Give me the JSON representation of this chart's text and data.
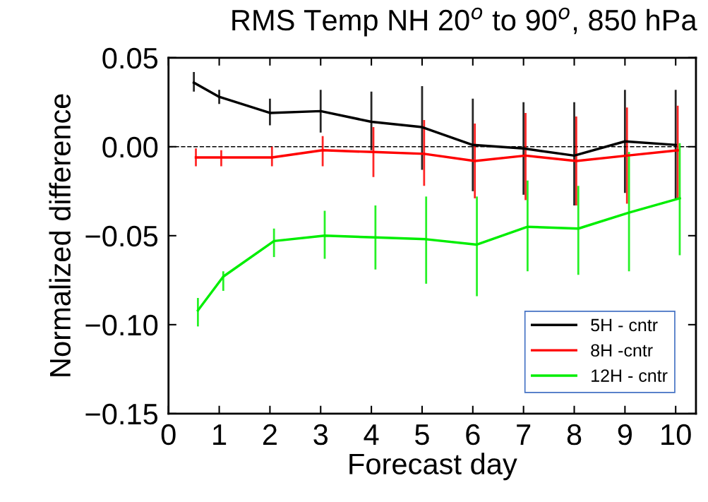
{
  "chart_data": {
    "type": "line",
    "title": "RMS Temp NH 20$^{o}$ to 90$^{o}$, 850 hPa",
    "xlabel": "Forecast day",
    "ylabel": "Normalized difference",
    "x": [
      0.5,
      1,
      2,
      3,
      4,
      5,
      6,
      7,
      8,
      9,
      10
    ],
    "series": [
      {
        "name": "5H - cntr",
        "color": "#000000",
        "values": [
          0.036,
          0.028,
          0.019,
          0.02,
          0.014,
          0.011,
          0.001,
          -0.001,
          -0.005,
          0.003,
          0.001
        ],
        "errors": [
          [
            0.031,
            0.042
          ],
          [
            0.024,
            0.032
          ],
          [
            0.012,
            0.027
          ],
          [
            0.008,
            0.032
          ],
          [
            -0.002,
            0.031
          ],
          [
            -0.013,
            0.034
          ],
          [
            -0.025,
            0.027
          ],
          [
            -0.027,
            0.025
          ],
          [
            -0.033,
            0.025
          ],
          [
            -0.026,
            0.032
          ],
          [
            -0.029,
            0.032
          ]
        ]
      },
      {
        "name": "8H -cntr",
        "color": "#ff0000",
        "x": [
          0.54,
          1.04,
          2.04,
          3.04,
          4.04,
          5.04,
          6.04,
          7.04,
          8.04,
          9.04,
          10.04
        ],
        "values": [
          -0.006,
          -0.006,
          -0.006,
          -0.002,
          -0.003,
          -0.004,
          -0.008,
          -0.005,
          -0.008,
          -0.005,
          -0.002
        ],
        "errors": [
          [
            -0.011,
            -0.001
          ],
          [
            -0.011,
            -0.002
          ],
          [
            -0.011,
            0.0
          ],
          [
            -0.011,
            0.006
          ],
          [
            -0.017,
            0.011
          ],
          [
            -0.022,
            0.015
          ],
          [
            -0.029,
            0.013
          ],
          [
            -0.03,
            0.019
          ],
          [
            -0.033,
            0.017
          ],
          [
            -0.032,
            0.022
          ],
          [
            -0.029,
            0.023
          ]
        ]
      },
      {
        "name": "12H - cntr",
        "color": "#00ee00",
        "x": [
          0.58,
          1.08,
          2.08,
          3.08,
          4.08,
          5.08,
          6.08,
          7.08,
          8.08,
          9.08,
          10.08
        ],
        "values": [
          -0.092,
          -0.073,
          -0.053,
          -0.05,
          -0.051,
          -0.052,
          -0.055,
          -0.045,
          -0.046,
          -0.037,
          -0.029
        ],
        "errors": [
          [
            -0.101,
            -0.085
          ],
          [
            -0.081,
            -0.07
          ],
          [
            -0.062,
            -0.046
          ],
          [
            -0.063,
            -0.036
          ],
          [
            -0.069,
            -0.033
          ],
          [
            -0.077,
            -0.028
          ],
          [
            -0.084,
            -0.028
          ],
          [
            -0.07,
            -0.019
          ],
          [
            -0.072,
            -0.022
          ],
          [
            -0.07,
            -0.003
          ],
          [
            -0.061,
            0.002
          ]
        ]
      }
    ],
    "xlim": [
      0,
      10.4
    ],
    "xticks": [
      0,
      1,
      2,
      3,
      4,
      5,
      6,
      7,
      8,
      9,
      10
    ],
    "ylim": [
      -0.15,
      0.05
    ],
    "yticks": [
      {
        "value": 0.05,
        "label": "0.05"
      },
      {
        "value": 0,
        "label": "0.00"
      },
      {
        "value": -0.05,
        "label": "−0.05"
      },
      {
        "value": -0.1,
        "label": "−0.10"
      },
      {
        "value": -0.15,
        "label": "−0.15"
      }
    ],
    "ref_lines": [
      {
        "axis": "y",
        "value": 0,
        "color": "#000000",
        "line_style": "dashed"
      }
    ],
    "legend": "bottom right",
    "grid": false,
    "marker": "none",
    "line_style": "solid"
  }
}
